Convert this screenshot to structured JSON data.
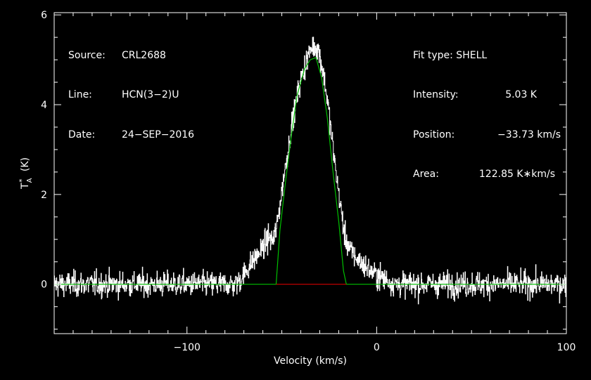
{
  "info_left": [
    {
      "key": "Source:",
      "value": "CRL2688"
    },
    {
      "key": "Line:",
      "value": "HCN(3−2)U"
    },
    {
      "key": "Date:",
      "value": "24−SEP−2016"
    }
  ],
  "info_right": {
    "fit_type": "Fit type: SHELL",
    "rows": [
      {
        "key": "Intensity:",
        "value": "5.03 K"
      },
      {
        "key": "Position:",
        "value": "−33.73 km/s"
      },
      {
        "key": "Area:",
        "value": "122.85 K∗km/s"
      }
    ]
  },
  "colors": {
    "background": "#000000",
    "spectrum": "#ffffff",
    "fit": "#00c000",
    "baseline_window": "#d00000",
    "frame": "#ffffff"
  },
  "chart_data": {
    "type": "line",
    "xlabel": "Velocity (km/s)",
    "ylabel": "T*A (K)",
    "xlim": [
      -170,
      100
    ],
    "ylim": [
      -1.1,
      6.05
    ],
    "x_ticks_major": [
      -100,
      0,
      100
    ],
    "x_tick_labels": [
      "−100",
      "0",
      "100"
    ],
    "y_ticks_major": [
      0,
      2,
      4,
      6
    ],
    "y_tick_labels": [
      "0",
      "2",
      "4",
      "6"
    ],
    "series": [
      {
        "name": "spectrum",
        "noise_rms": 0.28,
        "profile_points": [
          [
            -170,
            0
          ],
          [
            -75,
            0
          ],
          [
            -72,
            0.1
          ],
          [
            -68,
            0.35
          ],
          [
            -64,
            0.6
          ],
          [
            -60,
            0.8
          ],
          [
            -57,
            1.05
          ],
          [
            -55,
            0.95
          ],
          [
            -53,
            1.2
          ],
          [
            -49,
            2.4
          ],
          [
            -45,
            3.5
          ],
          [
            -41,
            4.4
          ],
          [
            -37,
            5.0
          ],
          [
            -34,
            5.3
          ],
          [
            -31,
            5.25
          ],
          [
            -29,
            4.9
          ],
          [
            -26,
            4.1
          ],
          [
            -23,
            3.0
          ],
          [
            -20,
            2.0
          ],
          [
            -17,
            1.1
          ],
          [
            -14,
            0.75
          ],
          [
            -10,
            0.55
          ],
          [
            -5,
            0.35
          ],
          [
            0,
            0.2
          ],
          [
            5,
            0.1
          ],
          [
            10,
            0
          ],
          [
            100,
            0
          ]
        ]
      },
      {
        "name": "fit",
        "points": [
          [
            -170,
            0
          ],
          [
            -72,
            0
          ],
          [
            -53,
            0
          ],
          [
            -51,
            1.2
          ],
          [
            -48,
            2.3
          ],
          [
            -45,
            3.3
          ],
          [
            -42,
            4.2
          ],
          [
            -38,
            4.8
          ],
          [
            -35,
            5.0
          ],
          [
            -32,
            5.05
          ],
          [
            -29,
            4.6
          ],
          [
            -26,
            3.7
          ],
          [
            -23,
            2.5
          ],
          [
            -20,
            1.4
          ],
          [
            -17.5,
            0.3
          ],
          [
            -16,
            0
          ],
          [
            100,
            0
          ]
        ]
      },
      {
        "name": "baseline_window",
        "points": [
          [
            -53,
            0
          ],
          [
            -16,
            0
          ]
        ]
      }
    ]
  }
}
